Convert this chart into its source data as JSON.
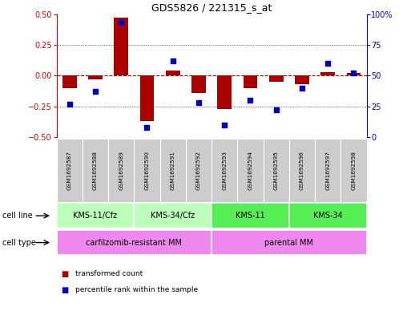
{
  "title": "GDS5826 / 221315_s_at",
  "samples": [
    "GSM1692587",
    "GSM1692588",
    "GSM1692589",
    "GSM1692590",
    "GSM1692591",
    "GSM1692592",
    "GSM1692593",
    "GSM1692594",
    "GSM1692595",
    "GSM1692596",
    "GSM1692597",
    "GSM1692598"
  ],
  "transformed_count": [
    -0.1,
    -0.03,
    0.47,
    -0.37,
    0.04,
    -0.14,
    -0.27,
    -0.1,
    -0.05,
    -0.07,
    0.03,
    0.02
  ],
  "percentile_rank": [
    27,
    37,
    93,
    8,
    62,
    28,
    10,
    30,
    22,
    40,
    60,
    52
  ],
  "cell_line_groups": [
    {
      "label": "KMS-11/Cfz",
      "start": 0,
      "end": 2
    },
    {
      "label": "KMS-34/Cfz",
      "start": 3,
      "end": 5
    },
    {
      "label": "KMS-11",
      "start": 6,
      "end": 8
    },
    {
      "label": "KMS-34",
      "start": 9,
      "end": 11
    }
  ],
  "cell_line_colors": [
    "#bbffbb",
    "#bbffbb",
    "#55ee55",
    "#55ee55"
  ],
  "cell_type_groups": [
    {
      "label": "carfilzomib-resistant MM",
      "start": 0,
      "end": 5
    },
    {
      "label": "parental MM",
      "start": 6,
      "end": 11
    }
  ],
  "cell_type_color": "#ee88ee",
  "bar_color": "#aa0000",
  "dot_color": "#0000bb",
  "left_axis_color": "#cc0000",
  "right_axis_color": "#0000bb",
  "ylim_left": [
    -0.5,
    0.5
  ],
  "ylim_right": [
    0,
    100
  ],
  "yticks_left": [
    -0.5,
    -0.25,
    0,
    0.25,
    0.5
  ],
  "yticks_right": [
    0,
    25,
    50,
    75,
    100
  ],
  "hline_y": [
    -0.25,
    0,
    0.25
  ],
  "bar_width": 0.55,
  "dot_size": 22
}
